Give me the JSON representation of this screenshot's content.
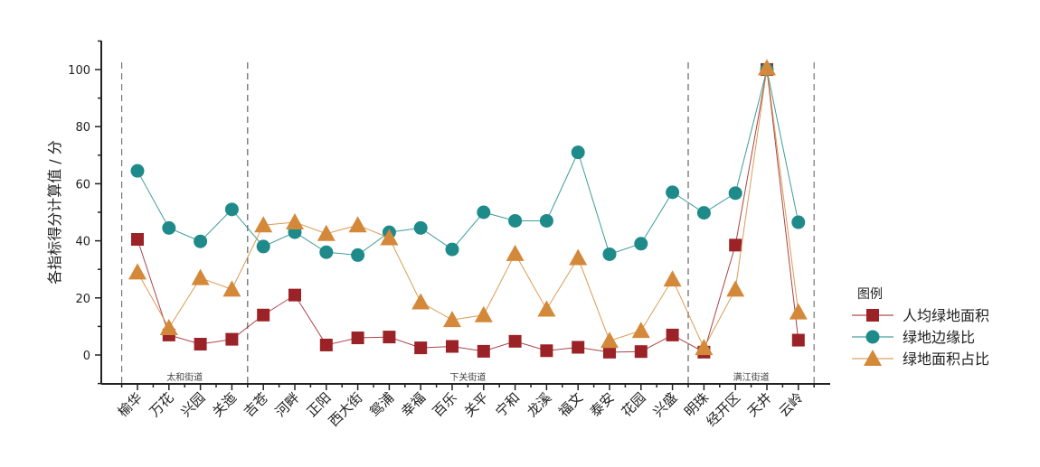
{
  "chart_data": {
    "type": "line",
    "ylabel": "各指标得分计算值 / 分",
    "ylim": [
      -10,
      110
    ],
    "yticks": [
      0,
      20,
      40,
      60,
      80,
      100
    ],
    "categories": [
      "榆华",
      "万花",
      "兴园",
      "关迤",
      "吉苍",
      "河畔",
      "正阳",
      "西大街",
      "鸳浦",
      "幸福",
      "百乐",
      "关平",
      "宁和",
      "龙溪",
      "福文",
      "泰安",
      "花园",
      "兴盛",
      "明珠",
      "经开区",
      "天井",
      "云岭"
    ],
    "groups": [
      {
        "label": "太和街道",
        "start": 0,
        "end": 3
      },
      {
        "label": "下关街道",
        "start": 4,
        "end": 17
      },
      {
        "label": "满江街道",
        "start": 18,
        "end": 21
      }
    ],
    "legend_title": "图例",
    "legend_position": "right",
    "series": [
      {
        "name": "人均绿地面积",
        "marker": "square",
        "color": "#9b2226",
        "values": [
          40.5,
          7,
          3.8,
          5.5,
          14,
          21,
          3.5,
          6,
          6.3,
          2.5,
          3,
          1.3,
          4.8,
          1.5,
          2.7,
          1,
          1.2,
          7,
          1,
          38.5,
          100,
          5.2
        ]
      },
      {
        "name": "绿地边缘比",
        "marker": "circle",
        "color": "#1f8a8a",
        "values": [
          64.5,
          44.5,
          39.8,
          51,
          38,
          43,
          36,
          35,
          43,
          44.5,
          37,
          50,
          47,
          47,
          71,
          35.3,
          39,
          57,
          49.8,
          56.7,
          100,
          46.5
        ]
      },
      {
        "name": "绿地面积占比",
        "marker": "triangle",
        "color": "#d4893a",
        "values": [
          29,
          9.5,
          27,
          23,
          45.5,
          46.5,
          42.5,
          45.5,
          41,
          18.5,
          12.3,
          14,
          35.5,
          16,
          34,
          5,
          8.5,
          26.5,
          2.5,
          23,
          100.5,
          15
        ]
      }
    ]
  }
}
